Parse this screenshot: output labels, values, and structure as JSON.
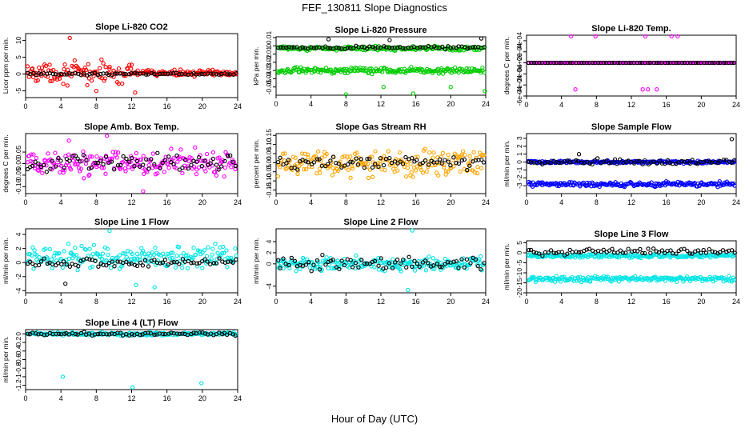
{
  "page": {
    "title": "FEF_130811  Slope Diagnostics",
    "xlabel": "Hour of Day (UTC)"
  },
  "chart_data": [
    {
      "type": "scatter",
      "title": "Slope Li-820 CO2",
      "ylabel": "Licor ppm per min.",
      "xlim": [
        0,
        24
      ],
      "ylim": [
        -7,
        12
      ],
      "x_ticks": [
        0,
        4,
        8,
        12,
        16,
        20,
        24
      ],
      "y_ticks": [
        -5,
        0,
        5,
        10
      ],
      "series": [
        {
          "color": "#ff0000",
          "pattern": {
            "level": 0.3,
            "spread": 2.5,
            "until": 12,
            "spread_after": 0.7
          },
          "outliers": [
            [
              5.0,
              10.7
            ],
            [
              12.4,
              -5.5
            ],
            [
              8.0,
              -5.0
            ]
          ]
        },
        {
          "color": "#000000",
          "pattern": {
            "level": 0.0,
            "spread": 0.3
          }
        }
      ]
    },
    {
      "type": "scatter",
      "title": "Slope Li-820 Pressure",
      "ylabel": "kPa per min.",
      "xlim": [
        0,
        24
      ],
      "ylim": [
        -0.06,
        0.011
      ],
      "x_ticks": [
        0,
        4,
        8,
        12,
        16,
        20,
        24
      ],
      "y_ticks": [
        -0.05,
        -0.04,
        -0.03,
        -0.02,
        -0.01,
        0.0,
        0.01
      ],
      "series": [
        {
          "color": "#00cc00",
          "pattern": {
            "level": -0.003,
            "spread": 0.002
          }
        },
        {
          "color": "#00cc00",
          "pattern": {
            "level": -0.03,
            "spread": 0.003
          },
          "outliers": [
            [
              8.0,
              -0.059
            ],
            [
              12.3,
              -0.05
            ],
            [
              15.7,
              -0.058
            ],
            [
              23.9,
              -0.055
            ],
            [
              20.0,
              -0.05
            ]
          ]
        },
        {
          "color": "#000000",
          "pattern": {
            "level": -0.002,
            "spread": 0.0015
          },
          "outliers": [
            [
              6.0,
              0.008
            ],
            [
              13.0,
              0.007
            ],
            [
              23.5,
              0.009
            ]
          ]
        }
      ]
    },
    {
      "type": "scatter",
      "title": "Slope Li-820 Temp.",
      "ylabel": "degrees C per min.",
      "xlim": [
        0,
        24
      ],
      "ylim": [
        -0.0006,
        0.0005
      ],
      "x_ticks": [
        0,
        4,
        8,
        12,
        16,
        20,
        24
      ],
      "y_ticks": [
        -0.0006,
        -0.0004,
        -0.0002,
        0.0,
        0.0002,
        0.0004
      ],
      "y_tick_labels": [
        "-6e-04",
        "-4e-04",
        "-2e-04",
        "0e+00",
        "2e-04",
        "4e-04"
      ],
      "series": [
        {
          "color": "#ff00ff",
          "pattern": {
            "level": 0.0,
            "spread": 0.0
          },
          "outliers": [
            [
              5.1,
              0.00048
            ],
            [
              7.9,
              0.00048
            ],
            [
              13.6,
              0.00048
            ],
            [
              16.6,
              0.00048
            ],
            [
              17.3,
              0.00048
            ],
            [
              5.6,
              -0.00048
            ],
            [
              13.3,
              -0.00048
            ],
            [
              13.9,
              -0.00048
            ],
            [
              14.9,
              -0.00048
            ]
          ]
        },
        {
          "color": "#000000",
          "pattern": {
            "level": 0.0,
            "spread": 0.0
          }
        }
      ]
    },
    {
      "type": "scatter",
      "title": "Slope Amb. Box Temp.",
      "ylabel": "degrees C per min.",
      "xlim": [
        0,
        24
      ],
      "ylim": [
        -0.13,
        0.13
      ],
      "x_ticks": [
        0,
        4,
        8,
        12,
        16,
        20,
        24
      ],
      "y_ticks": [
        -0.1,
        -0.05,
        0.0,
        0.05
      ],
      "y_tick_labels": [
        "-0.10",
        "-0.05",
        "0.00",
        "0.05"
      ],
      "series": [
        {
          "color": "#ff00ff",
          "pattern": {
            "level": 0.0,
            "spread": 0.045
          },
          "outliers": [
            [
              9.2,
              0.12
            ],
            [
              13.3,
              -0.12
            ],
            [
              4.9,
              0.1
            ]
          ]
        },
        {
          "color": "#000000",
          "pattern": {
            "level": 0.0,
            "spread": 0.03
          }
        }
      ]
    },
    {
      "type": "scatter",
      "title": "Slope Gas Stream RH",
      "ylabel": "percent per min.",
      "xlim": [
        0,
        24
      ],
      "ylim": [
        -0.17,
        0.16
      ],
      "x_ticks": [
        0,
        4,
        8,
        12,
        16,
        20,
        24
      ],
      "y_ticks": [
        -0.15,
        -0.1,
        -0.05,
        0.0,
        0.05,
        0.1,
        0.15
      ],
      "y_tick_labels": [
        "-0.15",
        "-0.10",
        "-0.05",
        "0.00",
        "0.05",
        "0.10",
        "0.15"
      ],
      "series": [
        {
          "color": "#ffa500",
          "pattern": {
            "level": 0.0,
            "spread": 0.06
          }
        },
        {
          "color": "#000000",
          "pattern": {
            "level": 0.0,
            "spread": 0.03
          }
        }
      ]
    },
    {
      "type": "scatter",
      "title": "Slope Sample Flow",
      "ylabel": "ml/min per min.",
      "xlim": [
        0,
        24
      ],
      "ylim": [
        -4.0,
        3.6
      ],
      "x_ticks": [
        0,
        4,
        8,
        12,
        16,
        20,
        24
      ],
      "y_ticks": [
        -3,
        -2,
        -1,
        0,
        1,
        2,
        3
      ],
      "series": [
        {
          "color": "#0000ff",
          "pattern": {
            "level": 0.0,
            "spread": 0.15
          }
        },
        {
          "color": "#0000ff",
          "pattern": {
            "level": -2.8,
            "spread": 0.25
          }
        },
        {
          "color": "#000000",
          "pattern": {
            "level": 0.0,
            "spread": 0.3
          },
          "outliers": [
            [
              23.5,
              2.9
            ],
            [
              6.0,
              1.0
            ]
          ]
        }
      ]
    },
    {
      "type": "scatter",
      "title": "Slope Line 1 Flow",
      "ylabel": "ml/min per min.",
      "xlim": [
        0,
        24
      ],
      "ylim": [
        -4.3,
        4.8
      ],
      "x_ticks": [
        0,
        4,
        8,
        12,
        16,
        20,
        24
      ],
      "y_ticks": [
        -4,
        -2,
        0,
        2,
        4
      ],
      "series": [
        {
          "color": "#00e5e5",
          "pattern": {
            "level": 0.8,
            "spread": 1.4
          },
          "outliers": [
            [
              9.5,
              4.5
            ],
            [
              14.6,
              -3.5
            ],
            [
              12.5,
              -3.2
            ]
          ]
        },
        {
          "color": "#000000",
          "pattern": {
            "level": 0.0,
            "spread": 0.5
          },
          "outliers": [
            [
              4.5,
              -3.0
            ]
          ]
        }
      ]
    },
    {
      "type": "scatter",
      "title": "Slope Line 2 Flow",
      "ylabel": "ml/min per min.",
      "xlim": [
        0,
        24
      ],
      "ylim": [
        -5.2,
        6.3
      ],
      "x_ticks": [
        0,
        4,
        8,
        12,
        16,
        20,
        24
      ],
      "y_ticks": [
        -4,
        0,
        2,
        4
      ],
      "series": [
        {
          "color": "#00e5e5",
          "pattern": {
            "level": 0.0,
            "spread": 1.1
          },
          "outliers": [
            [
              15.6,
              6.0
            ],
            [
              15.1,
              -4.7
            ]
          ]
        },
        {
          "color": "#000000",
          "pattern": {
            "level": 0.0,
            "spread": 1.1
          }
        }
      ]
    },
    {
      "type": "scatter",
      "title": "Slope Line 3 Flow",
      "ylabel": "ml/min per min.",
      "xlim": [
        0,
        24
      ],
      "ylim": [
        -20,
        6
      ],
      "x_ticks": [
        0,
        4,
        8,
        12,
        16,
        20,
        24
      ],
      "y_ticks": [
        -20,
        -15,
        -10,
        -5,
        0,
        5
      ],
      "series": [
        {
          "color": "#00e5e5",
          "pattern": {
            "level": -1.5,
            "spread": 0.8
          }
        },
        {
          "color": "#00e5e5",
          "pattern": {
            "level": -13.0,
            "spread": 1.0
          }
        },
        {
          "color": "#000000",
          "pattern": {
            "level": 0.5,
            "spread": 1.5
          }
        }
      ]
    },
    {
      "type": "scatter",
      "title": "Slope Line 4 (LT) Flow",
      "ylabel": "ml/min per min.",
      "xlim": [
        0,
        24
      ],
      "ylim": [
        -1.3,
        0.1
      ],
      "x_ticks": [
        0,
        4,
        8,
        12,
        16,
        20,
        24
      ],
      "y_ticks": [
        -1.2,
        -1.0,
        -0.8,
        -0.6,
        -0.4,
        -0.2,
        0.0
      ],
      "series": [
        {
          "color": "#00e5e5",
          "pattern": {
            "level": 0.0,
            "spread": 0.03
          },
          "outliers": [
            [
              4.2,
              -1.0
            ],
            [
              12.1,
              -1.25
            ],
            [
              19.9,
              -1.15
            ]
          ]
        },
        {
          "color": "#000000",
          "pattern": {
            "level": 0.0,
            "spread": 0.03
          }
        }
      ]
    }
  ]
}
